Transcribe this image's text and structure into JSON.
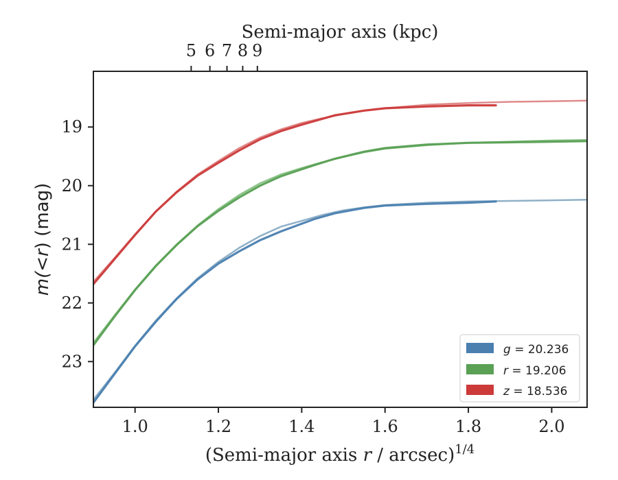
{
  "chart_data": {
    "type": "line",
    "xlabel": {
      "pre": "(Semi-major axis ",
      "var": "r",
      "post": " / arcsec)",
      "sup": "1/4"
    },
    "ylabel": {
      "pre": "m(",
      "lt": "<",
      "var": "r",
      "post": ") (mag)"
    },
    "x2label": "Semi-major axis (kpc)",
    "xlim": [
      0.9,
      2.085
    ],
    "ylim": [
      23.78,
      18.05
    ],
    "y_inverted": true,
    "xticks": [
      1.0,
      1.2,
      1.4,
      1.6,
      1.8,
      2.0
    ],
    "xtick_labels": [
      "1.0",
      "1.2",
      "1.4",
      "1.6",
      "1.8",
      "2.0"
    ],
    "yticks": [
      19,
      20,
      21,
      22,
      23
    ],
    "ytick_labels": [
      "19",
      "20",
      "21",
      "22",
      "23"
    ],
    "x2ticks": [
      1.1347,
      1.1796,
      1.2206,
      1.2584,
      1.2936
    ],
    "x2tick_labels": [
      "5",
      "6",
      "7",
      "8",
      "9"
    ],
    "legend_position": "lower-right",
    "series": [
      {
        "name": "g = 20.236",
        "legend": {
          "var": "g",
          "text": " = 20.236"
        },
        "color": "#4a7fb0",
        "model_color": "#8fb0c8",
        "x": [
          0.9,
          0.95,
          1.0,
          1.05,
          1.1,
          1.15,
          1.2,
          1.25,
          1.3,
          1.35,
          1.4,
          1.43,
          1.48,
          1.55,
          1.6,
          1.7,
          1.8,
          1.866
        ],
        "values": [
          23.7,
          23.22,
          22.74,
          22.32,
          21.93,
          21.6,
          21.33,
          21.12,
          20.93,
          20.78,
          20.65,
          20.57,
          20.47,
          20.38,
          20.34,
          20.31,
          20.29,
          20.27
        ],
        "model_x": [
          0.9,
          0.95,
          1.0,
          1.05,
          1.1,
          1.15,
          1.2,
          1.25,
          1.3,
          1.35,
          1.4,
          1.45,
          1.5,
          1.55,
          1.6,
          1.7,
          1.8,
          1.9,
          2.0,
          2.085
        ],
        "model_values": [
          23.65,
          23.2,
          22.73,
          22.3,
          21.92,
          21.58,
          21.3,
          21.06,
          20.86,
          20.7,
          20.6,
          20.5,
          20.42,
          20.37,
          20.33,
          20.29,
          20.27,
          20.26,
          20.25,
          20.24
        ]
      },
      {
        "name": "r = 19.206",
        "legend": {
          "var": "r",
          "text": " = 19.206"
        },
        "color": "#5aa055",
        "model_color": "#8cc488",
        "x": [
          0.9,
          0.95,
          1.0,
          1.05,
          1.1,
          1.15,
          1.2,
          1.25,
          1.3,
          1.35,
          1.4,
          1.43,
          1.48,
          1.55,
          1.6,
          1.7,
          1.8,
          1.9,
          2.0,
          2.085
        ],
        "values": [
          22.72,
          22.24,
          21.78,
          21.37,
          21.01,
          20.69,
          20.43,
          20.2,
          20.0,
          19.84,
          19.72,
          19.65,
          19.54,
          19.42,
          19.36,
          19.3,
          19.27,
          19.26,
          19.25,
          19.24
        ],
        "model_x": [
          0.9,
          0.95,
          1.0,
          1.05,
          1.1,
          1.15,
          1.2,
          1.25,
          1.3,
          1.35,
          1.4,
          1.45,
          1.5,
          1.55,
          1.6,
          1.7,
          1.8,
          1.9,
          2.0,
          2.085
        ],
        "model_values": [
          22.68,
          22.22,
          21.77,
          21.36,
          21.0,
          20.68,
          20.4,
          20.16,
          19.96,
          19.81,
          19.7,
          19.6,
          19.51,
          19.43,
          19.37,
          19.31,
          19.27,
          19.25,
          19.23,
          19.22
        ]
      },
      {
        "name": "z = 18.536",
        "legend": {
          "var": "z",
          "text": " = 18.536"
        },
        "color": "#cc3a3a",
        "model_color": "#e08a8a",
        "x": [
          0.9,
          0.95,
          1.0,
          1.05,
          1.1,
          1.15,
          1.2,
          1.25,
          1.3,
          1.35,
          1.4,
          1.44,
          1.48,
          1.55,
          1.6,
          1.7,
          1.8,
          1.866
        ],
        "values": [
          21.68,
          21.26,
          20.84,
          20.44,
          20.11,
          19.83,
          19.61,
          19.4,
          19.21,
          19.07,
          18.96,
          18.88,
          18.8,
          18.72,
          18.68,
          18.65,
          18.63,
          18.63
        ],
        "model_x": [
          0.9,
          0.95,
          1.0,
          1.05,
          1.1,
          1.15,
          1.2,
          1.25,
          1.3,
          1.35,
          1.4,
          1.45,
          1.5,
          1.55,
          1.6,
          1.7,
          1.8,
          1.9,
          2.0,
          2.085
        ],
        "model_values": [
          21.64,
          21.24,
          20.83,
          20.44,
          20.1,
          19.81,
          19.58,
          19.36,
          19.18,
          19.04,
          18.93,
          18.85,
          18.78,
          18.72,
          18.68,
          18.62,
          18.59,
          18.57,
          18.56,
          18.55
        ]
      }
    ]
  }
}
